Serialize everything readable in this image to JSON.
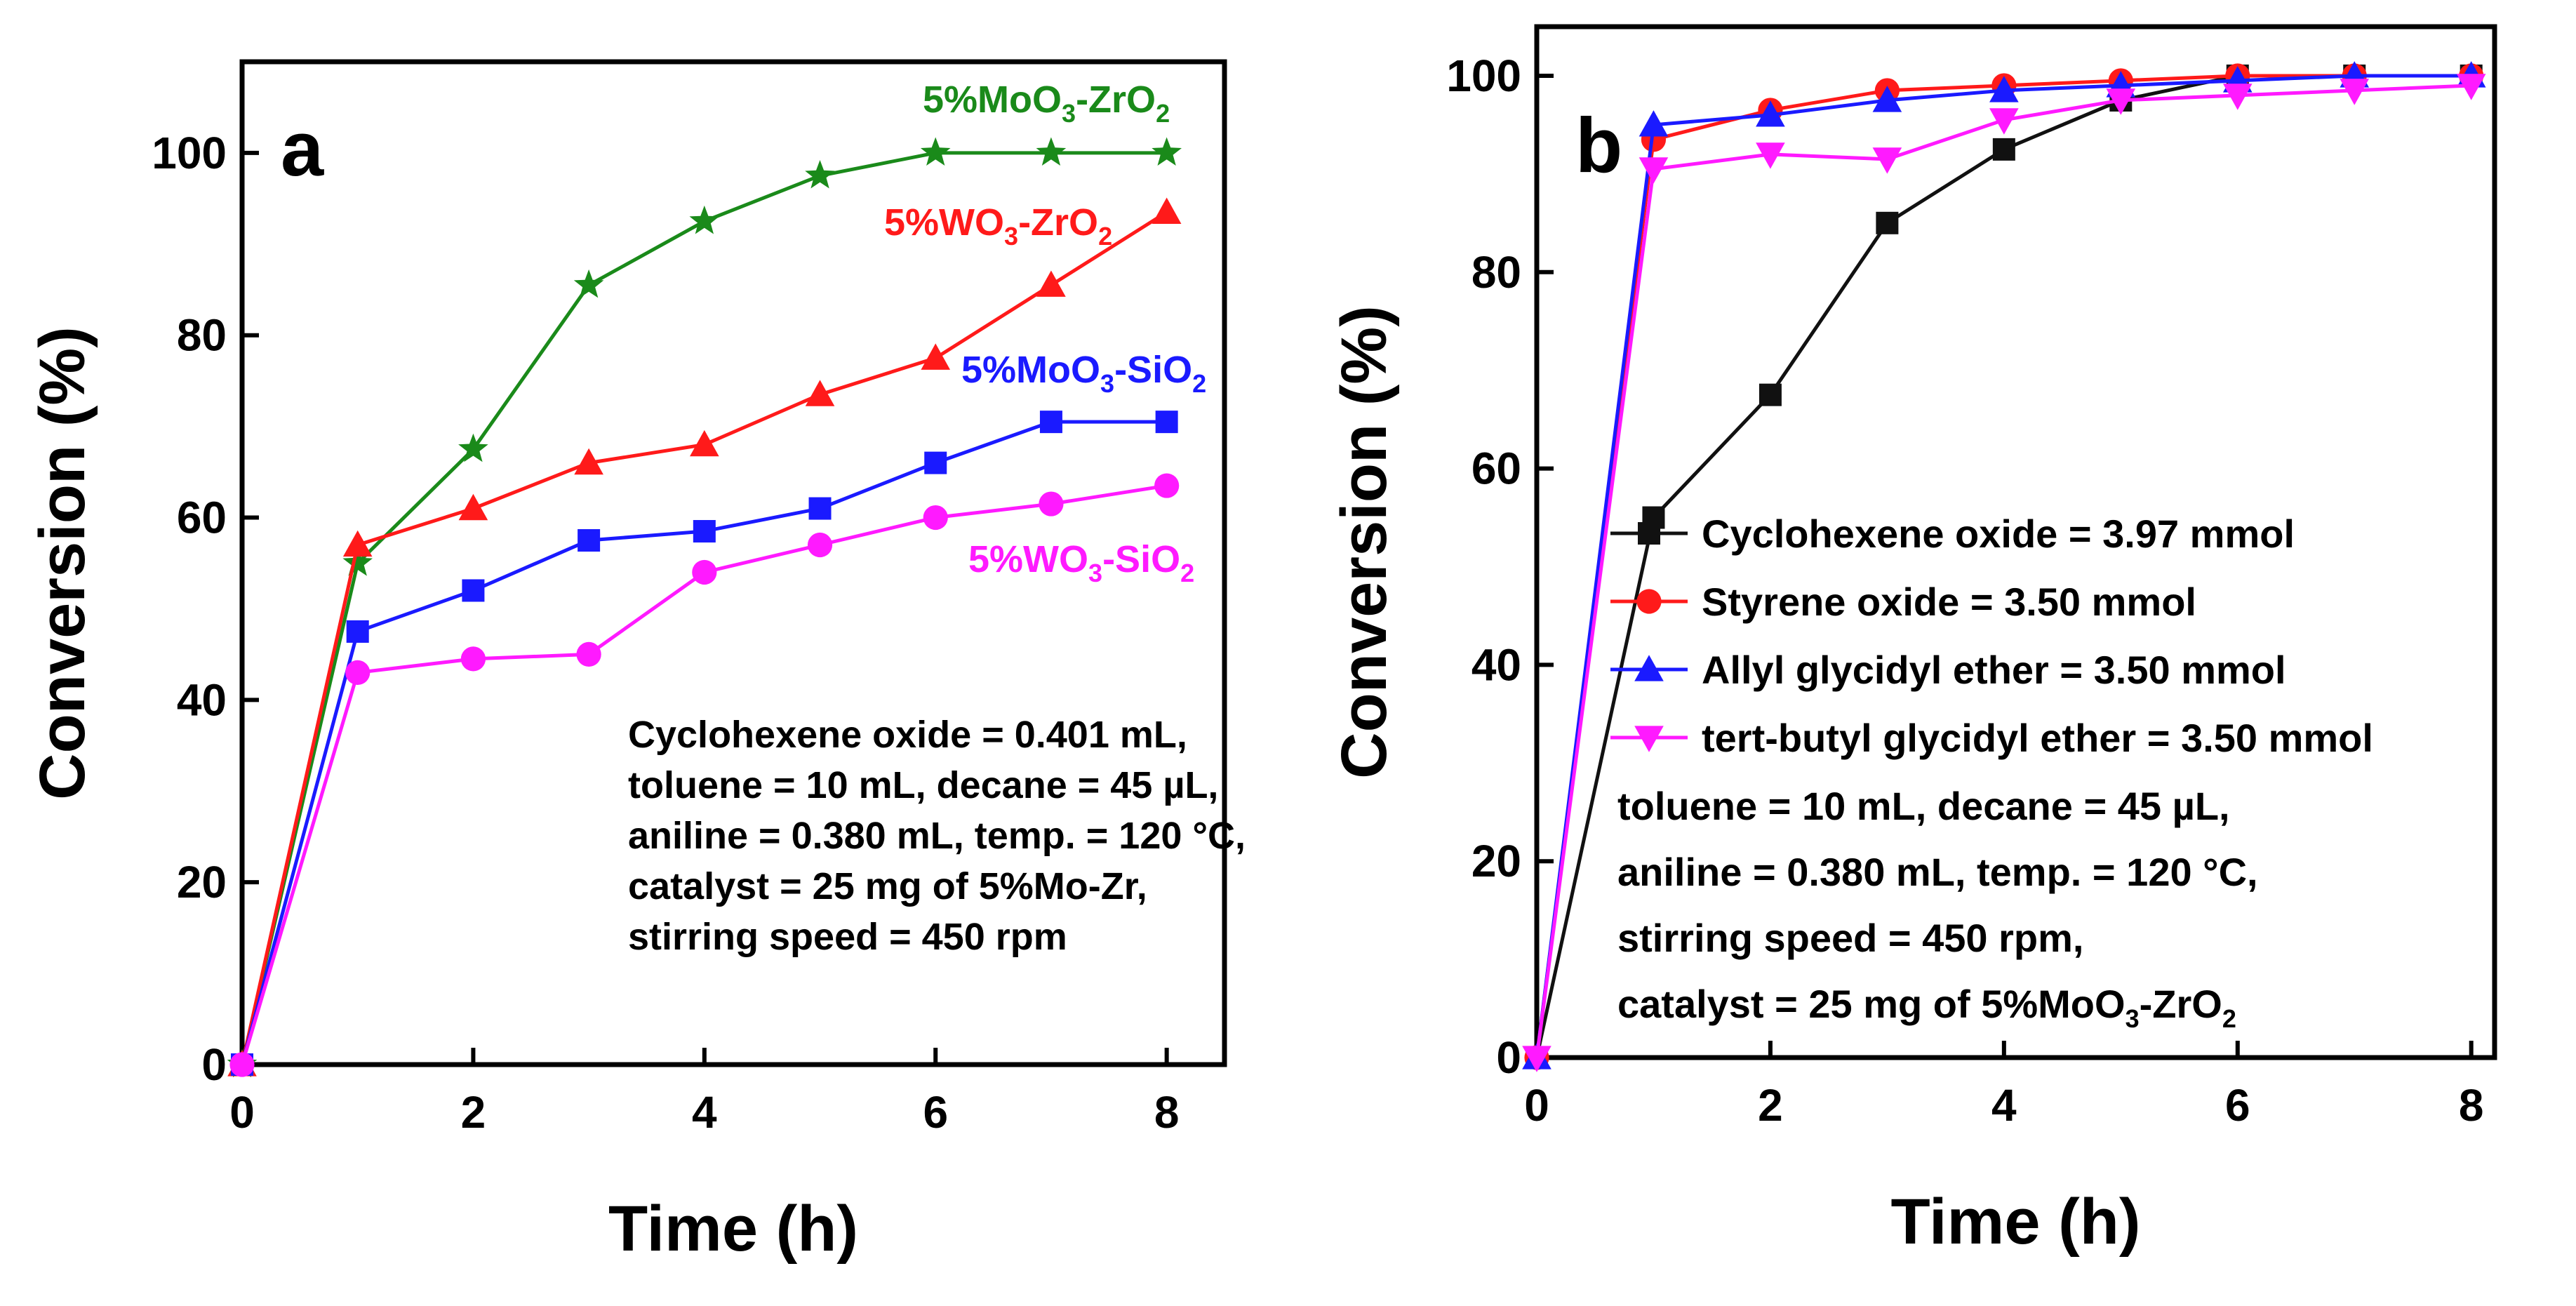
{
  "chart_data": [
    {
      "type": "line",
      "panel_letter": "a",
      "xlabel": "Time (h)",
      "ylabel": "Conversion (%)",
      "xlim": [
        0,
        8.5
      ],
      "ylim": [
        0,
        110
      ],
      "xticks": [
        0,
        2,
        4,
        6,
        8
      ],
      "yticks": [
        0,
        20,
        40,
        60,
        80,
        100
      ],
      "legend_position": "inline labels near series ends",
      "series": [
        {
          "name": "5%MoO3-ZrO2",
          "label_main": "5%MoO",
          "label_sub1": "3",
          "label_mid": "-ZrO",
          "label_sub2": "2",
          "color": "#1a8a1a",
          "marker": "star",
          "x": [
            0,
            1,
            2,
            3,
            4,
            5,
            6,
            7,
            8
          ],
          "y": [
            0,
            55,
            67.5,
            85.5,
            92.5,
            97.5,
            100,
            100,
            100
          ]
        },
        {
          "name": "5%WO3-ZrO2",
          "label_main": "5%WO",
          "label_sub1": "3",
          "label_mid": "-ZrO",
          "label_sub2": "2",
          "color": "#ff1a1a",
          "marker": "triangle-up",
          "x": [
            0,
            1,
            2,
            3,
            4,
            5,
            6,
            7,
            8
          ],
          "y": [
            0,
            57,
            61,
            66,
            68,
            73.5,
            77.5,
            85.5,
            93.5
          ]
        },
        {
          "name": "5%MoO3-SiO2",
          "label_main": "5%MoO",
          "label_sub1": "3",
          "label_mid": "-SiO",
          "label_sub2": "2",
          "color": "#1a1aff",
          "marker": "square",
          "x": [
            0,
            1,
            2,
            3,
            4,
            5,
            6,
            7,
            8
          ],
          "y": [
            0,
            47.5,
            52,
            57.5,
            58.5,
            61,
            66,
            70.5,
            70.5
          ]
        },
        {
          "name": "5%WO3-SiO2",
          "label_main": "5%WO",
          "label_sub1": "3",
          "label_mid": "-SiO",
          "label_sub2": "2",
          "color": "#ff1aff",
          "marker": "circle",
          "x": [
            0,
            1,
            2,
            3,
            4,
            5,
            6,
            7,
            8
          ],
          "y": [
            0,
            43,
            44.5,
            45,
            54,
            57,
            60,
            61.5,
            63.5
          ]
        }
      ],
      "annotation": [
        "Cyclohexene oxide = 0.401 mL,",
        "toluene = 10 mL, decane = 45 µL,",
        "aniline = 0.380 mL, temp. = 120 °C,",
        "catalyst = 25 mg of 5%Mo-Zr,",
        "stirring speed = 450 rpm"
      ]
    },
    {
      "type": "line",
      "panel_letter": "b",
      "xlabel": "Time (h)",
      "ylabel": "Conversion (%)",
      "xlim": [
        0,
        8.2
      ],
      "ylim": [
        0,
        105
      ],
      "xticks": [
        0,
        2,
        4,
        6,
        8
      ],
      "yticks": [
        0,
        20,
        40,
        60,
        80,
        100
      ],
      "legend_position": "middle-right",
      "series": [
        {
          "name": "Cyclohexene oxide = 3.97 mmol",
          "color": "#111111",
          "marker": "square",
          "x": [
            0,
            1,
            2,
            3,
            4,
            5,
            6,
            7,
            8
          ],
          "y": [
            0,
            55,
            67.5,
            85,
            92.5,
            97.5,
            100,
            100,
            100
          ]
        },
        {
          "name": "Styrene oxide = 3.50 mmol",
          "color": "#ff1a1a",
          "marker": "circle",
          "x": [
            0,
            1,
            2,
            3,
            4,
            5,
            6,
            7,
            8
          ],
          "y": [
            0,
            93.5,
            96.5,
            98.5,
            99,
            99.5,
            100,
            100,
            100
          ]
        },
        {
          "name": "Allyl glycidyl ether = 3.50 mmol",
          "color": "#1a1aff",
          "marker": "triangle-up",
          "x": [
            0,
            1,
            2,
            3,
            4,
            5,
            6,
            7,
            8
          ],
          "y": [
            0,
            95,
            96,
            97.5,
            98.5,
            99,
            99.5,
            100,
            100
          ]
        },
        {
          "name": "tert-butyl glycidyl ether = 3.50 mmol",
          "color": "#ff1aff",
          "marker": "triangle-down",
          "x": [
            0,
            1,
            2,
            3,
            4,
            5,
            6,
            7,
            8
          ],
          "y": [
            0,
            90.5,
            92,
            91.5,
            95.5,
            97.5,
            98,
            98.5,
            99
          ]
        }
      ],
      "annotation": [
        "toluene = 10 mL, decane = 45 µL,",
        "aniline = 0.380 mL, temp. = 120 °C,",
        "stirring speed = 450 rpm,"
      ],
      "annotation_last": {
        "main": "catalyst = 25 mg of 5%MoO",
        "sub1": "3",
        "mid": "-ZrO",
        "sub2": "2"
      }
    }
  ]
}
